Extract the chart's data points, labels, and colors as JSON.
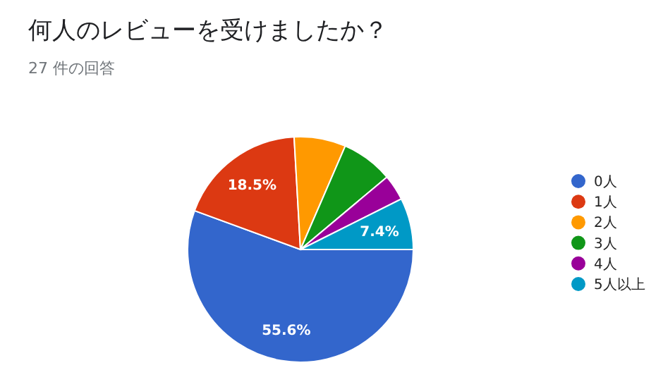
{
  "chart_data": {
    "type": "pie",
    "title": "何人のレビューを受けましたか？",
    "subtitle": "27 件の回答",
    "categories": [
      "0人",
      "1人",
      "2人",
      "3人",
      "4人",
      "5人以上"
    ],
    "values": [
      55.6,
      18.5,
      7.4,
      7.4,
      3.7,
      7.4
    ],
    "colors": [
      "#3366cc",
      "#dc3912",
      "#ff9900",
      "#109618",
      "#990099",
      "#0099c6"
    ],
    "value_labels": [
      "55.6%",
      "18.5%",
      null,
      null,
      null,
      "7.4%"
    ],
    "legend": "right"
  }
}
